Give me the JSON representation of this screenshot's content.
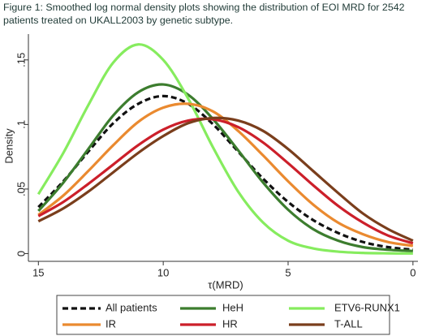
{
  "chart_data": {
    "type": "line",
    "title": "Figure 1: Smoothed log normal density plots showing the distribution of EOI MRD for 2542 patients treated on UKALL2003 by genetic subtype.",
    "x_label": "τ(MRD)",
    "y_label": "Density",
    "x": [
      15,
      14,
      13,
      12,
      11,
      10,
      9,
      8,
      7,
      6,
      5,
      4,
      3,
      2,
      1,
      0
    ],
    "xlim": [
      15.4,
      -0.2
    ],
    "xticks": [
      15,
      10,
      5,
      0
    ],
    "ylim": [
      -0.006,
      0.17
    ],
    "yticks": [
      0,
      {
        "value": 0.05,
        "label": ".05"
      },
      {
        "value": 0.1,
        "label": ".1"
      },
      {
        "value": 0.15,
        "label": ".15"
      }
    ],
    "grid": false,
    "legend": "bottom",
    "series": [
      {
        "name": "All patients",
        "color": "#111111",
        "dashed": true,
        "values": [
          0.036,
          0.056,
          0.079,
          0.101,
          0.116,
          0.122,
          0.116,
          0.1,
          0.079,
          0.058,
          0.04,
          0.026,
          0.016,
          0.009,
          0.005,
          0.003
        ]
      },
      {
        "name": "HeH",
        "color": "#3c7d2e",
        "values": [
          0.033,
          0.055,
          0.081,
          0.107,
          0.125,
          0.131,
          0.123,
          0.104,
          0.08,
          0.055,
          0.034,
          0.019,
          0.01,
          0.005,
          0.003,
          0.002
        ]
      },
      {
        "name": "ETV6-RUNX1",
        "color": "#86ec5e",
        "values": [
          0.046,
          0.078,
          0.115,
          0.148,
          0.162,
          0.15,
          0.12,
          0.082,
          0.048,
          0.024,
          0.01,
          0.004,
          0.0015,
          0.0005,
          0.0002,
          0.0001
        ]
      },
      {
        "name": "IR",
        "color": "#ea8a30",
        "values": [
          0.03,
          0.045,
          0.064,
          0.084,
          0.102,
          0.113,
          0.116,
          0.11,
          0.095,
          0.076,
          0.056,
          0.038,
          0.024,
          0.015,
          0.009,
          0.006
        ]
      },
      {
        "name": "HR",
        "color": "#cc1f2a",
        "values": [
          0.029,
          0.04,
          0.054,
          0.069,
          0.084,
          0.096,
          0.103,
          0.104,
          0.098,
          0.086,
          0.07,
          0.053,
          0.037,
          0.024,
          0.014,
          0.008
        ]
      },
      {
        "name": "T-ALL",
        "color": "#7a3e1c",
        "values": [
          0.025,
          0.035,
          0.048,
          0.063,
          0.078,
          0.091,
          0.101,
          0.105,
          0.103,
          0.095,
          0.081,
          0.064,
          0.047,
          0.031,
          0.019,
          0.01
        ]
      }
    ]
  }
}
